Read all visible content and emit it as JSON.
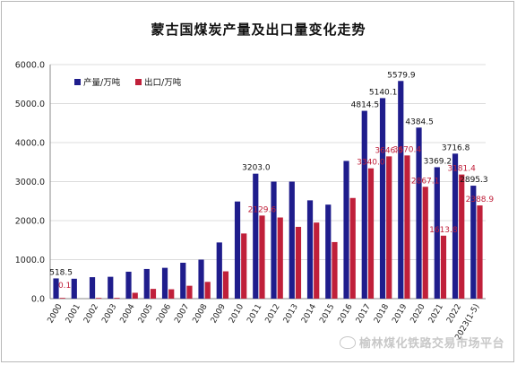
{
  "colors": {
    "production": "#1f1d8c",
    "export": "#c0203a",
    "grid": "#dcdcdc",
    "axis": "#888888",
    "export_label": "#c0203a"
  },
  "watermark": {
    "text": "榆林煤化铁路交易市场平台",
    "icon": "wechat-icon"
  },
  "chart_data": {
    "type": "bar",
    "title": "蒙古国煤炭产量及出口量变化走势",
    "xlabel": "",
    "ylabel": "",
    "ylim": [
      0,
      6000
    ],
    "yticks": [
      "0.0",
      "1000.0",
      "2000.0",
      "3000.0",
      "4000.0",
      "5000.0",
      "6000.0"
    ],
    "grid": true,
    "legend_position": "top-left",
    "categories": [
      "2000",
      "2001",
      "2002",
      "2003",
      "2004",
      "2005",
      "2006",
      "2007",
      "2008",
      "2009",
      "2010",
      "2011",
      "2012",
      "2013",
      "2014",
      "2015",
      "2016",
      "2017",
      "2018",
      "2019",
      "2020",
      "2021",
      "2022",
      "2023(1-5)"
    ],
    "series": [
      {
        "name": "产量/万吨",
        "color_key": "production",
        "values": [
          518.5,
          510,
          550,
          560,
          690,
          760,
          790,
          920,
          1000,
          1440,
          2490,
          3203.0,
          3000,
          3000,
          2520,
          2410,
          3530,
          4814.5,
          5140.1,
          5579.9,
          4384.5,
          3369.2,
          3716.8,
          2895.3
        ],
        "labels": [
          "518.5",
          "",
          "",
          "",
          "",
          "",
          "",
          "",
          "",
          "",
          "",
          "3203.0",
          "",
          "",
          "",
          "",
          "",
          "4814.5",
          "5140.1",
          "5579.9",
          "4384.5",
          "3369.2",
          "3716.8",
          "2895.3"
        ]
      },
      {
        "name": "出口/万吨",
        "color_key": "export",
        "values": [
          0.1,
          0,
          10,
          20,
          150,
          250,
          240,
          330,
          430,
          700,
          1670,
          2129.6,
          2080,
          1840,
          1950,
          1450,
          2580,
          3340.0,
          3646.5,
          3670.4,
          2867.1,
          1613.8,
          3181.4,
          2388.9
        ],
        "labels": [
          "0.1",
          "",
          "",
          "",
          "",
          "",
          "",
          "",
          "",
          "",
          "",
          "2129.6",
          "",
          "",
          "",
          "",
          "",
          "3340.0",
          "3646.5",
          "3670.4",
          "2867.1",
          "1613.8",
          "3181.4",
          "2388.9"
        ]
      }
    ]
  }
}
